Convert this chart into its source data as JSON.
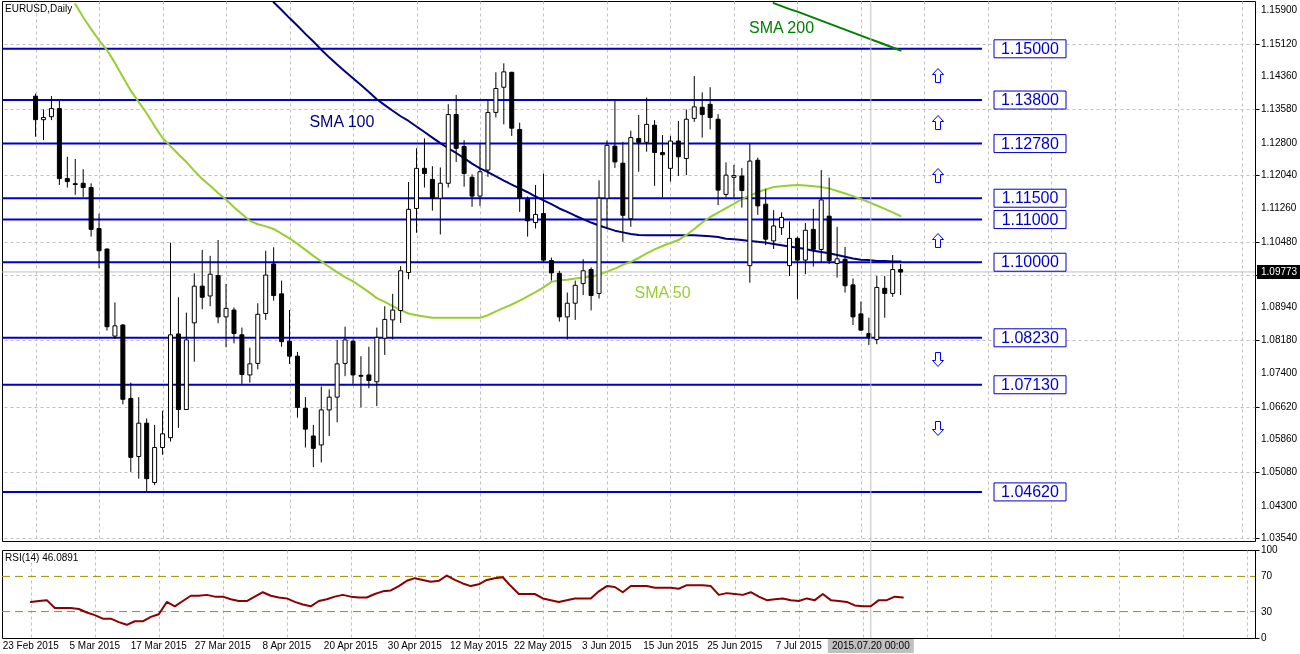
{
  "chart_data": [
    {
      "type": "candlestick",
      "title": "EURUSD,Daily",
      "categories": [
        null,
        null,
        null,
        null,
        null,
        null,
        null,
        null,
        null,
        null,
        null,
        null,
        null,
        null,
        null,
        null,
        null,
        null,
        null,
        null,
        null,
        null,
        null,
        null,
        null,
        null,
        null,
        null,
        null,
        null,
        null,
        null,
        null,
        null,
        null,
        null,
        null,
        null,
        null,
        null,
        null,
        null,
        null,
        null,
        null,
        null,
        null,
        null,
        null,
        null,
        null,
        null,
        null,
        null,
        null,
        null,
        null,
        null,
        null,
        null,
        null,
        null,
        null,
        null,
        null,
        null,
        null,
        null,
        null,
        null,
        null,
        null,
        null,
        null,
        null,
        null,
        null,
        null,
        null,
        null,
        null,
        null,
        null,
        null,
        null,
        null,
        null,
        null,
        null,
        null,
        null,
        null,
        null,
        null,
        null,
        null,
        null,
        null,
        null,
        null,
        null,
        null,
        null,
        null,
        null,
        null,
        null,
        null,
        null,
        null
      ],
      "ohlc": [
        [
          1.1389,
          1.1395,
          1.1294,
          1.1334
        ],
        [
          1.1334,
          1.1358,
          1.1286,
          1.1339
        ],
        [
          1.1341,
          1.1389,
          1.1333,
          1.136
        ],
        [
          1.136,
          1.138,
          1.1181,
          1.1196
        ],
        [
          1.1196,
          1.1247,
          1.1175,
          1.1189
        ],
        [
          1.1184,
          1.1242,
          1.1158,
          1.1182
        ],
        [
          1.1185,
          1.1218,
          1.1153,
          1.1175
        ],
        [
          1.1175,
          1.1185,
          1.106,
          1.1077
        ],
        [
          1.1079,
          1.1114,
          1.0986,
          1.1027
        ],
        [
          1.1031,
          1.1032,
          1.084,
          1.0849
        ],
        [
          1.0827,
          1.0906,
          1.082,
          1.0851
        ],
        [
          1.0853,
          1.0855,
          1.0667,
          1.0679
        ],
        [
          1.0681,
          1.0718,
          1.0509,
          1.0543
        ],
        [
          1.0545,
          1.0684,
          1.0493,
          1.0623
        ],
        [
          1.0623,
          1.0634,
          1.0462,
          1.0493
        ],
        [
          1.0484,
          1.0619,
          1.0478,
          1.0566
        ],
        [
          1.0566,
          1.0652,
          1.0549,
          1.0598
        ],
        [
          1.0589,
          1.1046,
          1.058,
          1.083
        ],
        [
          1.0832,
          1.0918,
          1.0612,
          1.0655
        ],
        [
          1.0655,
          1.0882,
          1.0654,
          1.0818
        ],
        [
          1.0858,
          1.0974,
          1.0767,
          1.0944
        ],
        [
          1.0944,
          1.1029,
          1.089,
          1.0918
        ],
        [
          1.0921,
          1.1015,
          1.0897,
          1.0972
        ],
        [
          1.0969,
          1.1052,
          1.0857,
          1.0872
        ],
        [
          1.0872,
          1.0949,
          1.0801,
          1.0892
        ],
        [
          1.0888,
          1.0894,
          1.081,
          1.0833
        ],
        [
          1.083,
          1.0847,
          1.0715,
          1.0737
        ],
        [
          1.0736,
          1.08,
          1.0718,
          1.0762
        ],
        [
          1.0763,
          1.0904,
          1.0749,
          1.0878
        ],
        [
          1.088,
          1.1027,
          1.0865,
          1.097
        ],
        [
          1.0996,
          1.1035,
          1.091,
          1.0922
        ],
        [
          1.0926,
          1.0957,
          1.0802,
          1.0814
        ],
        [
          1.0815,
          1.0888,
          1.0762,
          1.078
        ],
        [
          1.078,
          1.079,
          1.0636,
          1.066
        ],
        [
          1.0658,
          1.0684,
          1.0566,
          1.0609
        ],
        [
          1.0593,
          1.0619,
          1.052,
          1.0564
        ],
        [
          1.0572,
          1.0709,
          1.0531,
          1.0654
        ],
        [
          1.0654,
          1.0702,
          1.0593,
          1.0684
        ],
        [
          1.0684,
          1.0818,
          1.0625,
          1.0762
        ],
        [
          1.0763,
          1.0849,
          1.0733,
          1.0818
        ],
        [
          1.0815,
          1.0819,
          1.0715,
          1.0736
        ],
        [
          1.0735,
          1.078,
          1.066,
          1.0733
        ],
        [
          1.0736,
          1.0802,
          1.0705,
          1.0723
        ],
        [
          1.072,
          1.0847,
          1.0663,
          1.0824
        ],
        [
          1.0822,
          1.0897,
          1.0783,
          1.0866
        ],
        [
          1.0865,
          1.0926,
          1.0819,
          1.0888
        ],
        [
          1.0887,
          1.0991,
          1.0858,
          1.098
        ],
        [
          1.0976,
          1.1188,
          1.096,
          1.1124
        ],
        [
          1.1126,
          1.1267,
          1.1069,
          1.122
        ],
        [
          1.122,
          1.129,
          1.1175,
          1.1208
        ],
        [
          1.1194,
          1.1225,
          1.1121,
          1.115
        ],
        [
          1.115,
          1.1222,
          1.1065,
          1.1185
        ],
        [
          1.1185,
          1.137,
          1.1175,
          1.1346
        ],
        [
          1.1346,
          1.1392,
          1.1235,
          1.1267
        ],
        [
          1.1271,
          1.1286,
          1.1177,
          1.1208
        ],
        [
          1.1199,
          1.1206,
          1.113,
          1.1155
        ],
        [
          1.1155,
          1.1278,
          1.1132,
          1.1212
        ],
        [
          1.1216,
          1.138,
          1.12,
          1.1351
        ],
        [
          1.1351,
          1.1445,
          1.1339,
          1.1407
        ],
        [
          1.141,
          1.1466,
          1.1323,
          1.1446
        ],
        [
          1.1445,
          1.1446,
          1.1296,
          1.1314
        ],
        [
          1.1311,
          1.1327,
          1.1118,
          1.115
        ],
        [
          1.1147,
          1.1154,
          1.106,
          1.1097
        ],
        [
          1.1093,
          1.1181,
          1.1079,
          1.1112
        ],
        [
          1.1114,
          1.1208,
          1.1001,
          1.1005
        ],
        [
          1.1004,
          1.1011,
          1.0957,
          1.0975
        ],
        [
          1.0974,
          1.098,
          1.0861,
          1.0872
        ],
        [
          1.0872,
          1.0929,
          1.0819,
          1.0904
        ],
        [
          1.0904,
          1.0957,
          1.0865,
          1.0946
        ],
        [
          1.095,
          1.1007,
          1.0923,
          1.098
        ],
        [
          1.0983,
          1.0988,
          1.0887,
          1.0922
        ],
        [
          1.0927,
          1.1192,
          1.0915,
          1.115
        ],
        [
          1.115,
          1.1285,
          1.1079,
          1.1274
        ],
        [
          1.1272,
          1.138,
          1.1221,
          1.1235
        ],
        [
          1.1232,
          1.1282,
          1.1048,
          1.111
        ],
        [
          1.1102,
          1.1308,
          1.1083,
          1.1292
        ],
        [
          1.129,
          1.1345,
          1.1212,
          1.1281
        ],
        [
          1.1281,
          1.1386,
          1.1259,
          1.1323
        ],
        [
          1.1321,
          1.1333,
          1.1179,
          1.1257
        ],
        [
          1.1257,
          1.1298,
          1.1152,
          1.1252
        ],
        [
          1.122,
          1.1296,
          1.1189,
          1.1284
        ],
        [
          1.1284,
          1.1331,
          1.1202,
          1.1247
        ],
        [
          1.1243,
          1.1358,
          1.1204,
          1.1335
        ],
        [
          1.1337,
          1.1436,
          1.1329,
          1.1364
        ],
        [
          1.1363,
          1.1398,
          1.1292,
          1.1346
        ],
        [
          1.137,
          1.141,
          1.1311,
          1.1339
        ],
        [
          1.1335,
          1.1347,
          1.1134,
          1.1169
        ],
        [
          1.1159,
          1.1234,
          1.1152,
          1.1204
        ],
        [
          1.1199,
          1.1228,
          1.1152,
          1.1203
        ],
        [
          1.1202,
          1.1221,
          1.1128,
          1.1168
        ],
        [
          1.0992,
          1.1278,
          1.0952,
          1.1237
        ],
        [
          1.1239,
          1.1245,
          1.1111,
          1.1132
        ],
        [
          1.1136,
          1.1171,
          1.104,
          1.1054
        ],
        [
          1.105,
          1.1122,
          1.1031,
          1.1085
        ],
        [
          1.1081,
          1.1117,
          1.1064,
          1.1105
        ],
        [
          1.0992,
          1.1096,
          1.0968,
          1.1056
        ],
        [
          1.1056,
          1.106,
          1.0913,
          1.1005
        ],
        [
          1.1005,
          1.1092,
          1.0972,
          1.1075
        ],
        [
          1.1077,
          1.1125,
          1.099,
          1.103
        ],
        [
          1.103,
          1.1216,
          1.1001,
          1.1146
        ],
        [
          1.1108,
          1.1198,
          1.0996,
          1.1004
        ],
        [
          1.0997,
          1.1083,
          1.0964,
          1.1008
        ],
        [
          1.1007,
          1.1036,
          1.0929,
          1.0945
        ],
        [
          1.0947,
          1.0962,
          1.0853,
          1.0872
        ],
        [
          1.0879,
          1.0908,
          1.0839,
          1.0841
        ],
        [
          1.0833,
          1.087,
          1.0806,
          1.0823
        ],
        [
          1.0819,
          1.0968,
          1.0808,
          1.0941
        ],
        [
          1.0939,
          1.0968,
          1.087,
          1.0927
        ],
        [
          1.0927,
          1.1017,
          1.0919,
          1.0983
        ],
        [
          1.0983,
          1.0996,
          1.0923,
          1.0977
        ]
      ],
      "colors": [
        "#000000",
        "#ffffff",
        "#ffffff",
        "#000000",
        "#000000",
        "#000000",
        "#000000",
        "#000000",
        "#000000",
        "#000000",
        "#ffffff",
        "#000000",
        "#000000",
        "#ffffff",
        "#000000",
        "#ffffff",
        "#ffffff",
        "#ffffff",
        "#000000",
        "#ffffff",
        "#ffffff",
        "#000000",
        "#ffffff",
        "#000000",
        "#ffffff",
        "#000000",
        "#000000",
        "#ffffff",
        "#ffffff",
        "#ffffff",
        "#000000",
        "#000000",
        "#000000",
        "#000000",
        "#000000",
        "#000000",
        "#ffffff",
        "#ffffff",
        "#ffffff",
        "#ffffff",
        "#000000",
        "#000000",
        "#000000",
        "#ffffff",
        "#ffffff",
        "#ffffff",
        "#ffffff",
        "#ffffff",
        "#ffffff",
        "#000000",
        "#000000",
        "#ffffff",
        "#ffffff",
        "#000000",
        "#000000",
        "#000000",
        "#ffffff",
        "#ffffff",
        "#ffffff",
        "#ffffff",
        "#000000",
        "#000000",
        "#000000",
        "#ffffff",
        "#000000",
        "#000000",
        "#000000",
        "#ffffff",
        "#ffffff",
        "#ffffff",
        "#000000",
        "#ffffff",
        "#ffffff",
        "#000000",
        "#000000",
        "#ffffff",
        "#000000",
        "#ffffff",
        "#000000",
        "#000000",
        "#ffffff",
        "#000000",
        "#ffffff",
        "#ffffff",
        "#000000",
        "#000000",
        "#000000",
        "#ffffff",
        "#ffffff",
        "#000000",
        "#ffffff",
        "#000000",
        "#000000",
        "#ffffff",
        "#ffffff",
        "#ffffff",
        "#000000",
        "#ffffff",
        "#000000",
        "#ffffff",
        "#000000",
        "#ffffff",
        "#000000",
        "#000000",
        "#000000",
        "#000000",
        "#ffffff",
        "#000000",
        "#ffffff",
        "#000000"
      ],
      "series": [
        {
          "type": "line",
          "name": "SMA 200",
          "color": "#008000",
          "values": [
            null,
            null,
            null,
            null,
            null,
            null,
            null,
            null,
            null,
            null,
            null,
            null,
            null,
            null,
            null,
            null,
            null,
            null,
            null,
            null,
            null,
            null,
            null,
            null,
            null,
            null,
            null,
            null,
            null,
            null,
            null,
            null,
            null,
            null,
            null,
            null,
            null,
            null,
            null,
            null,
            null,
            null,
            null,
            null,
            null,
            null,
            null,
            null,
            null,
            null,
            null,
            null,
            null,
            null,
            null,
            null,
            null,
            null,
            null,
            null,
            null,
            null,
            null,
            null,
            null,
            null,
            null,
            null,
            null,
            null,
            null,
            null,
            null,
            null,
            null,
            null,
            null,
            null,
            null,
            null,
            null,
            null,
            null,
            null,
            null,
            null,
            null,
            null,
            null,
            null,
            null,
            null,
            null,
            1.1607,
            1.16,
            1.1593,
            1.1587,
            1.158,
            1.1573,
            1.1566,
            1.1559,
            1.1552,
            1.1545,
            1.1538,
            1.1531,
            1.1524,
            1.1517,
            1.151,
            1.1503,
            1.1496
          ]
        },
        {
          "type": "line",
          "name": "SMA 100",
          "color": "#000080",
          "values": [
            null,
            null,
            null,
            null,
            null,
            null,
            null,
            null,
            null,
            null,
            null,
            null,
            null,
            null,
            null,
            null,
            null,
            null,
            null,
            null,
            null,
            null,
            null,
            null,
            null,
            null,
            null,
            null,
            null,
            null,
            1.1609,
            1.1591,
            1.1572,
            1.1554,
            1.1535,
            1.1517,
            1.1498,
            1.148,
            1.1463,
            1.1447,
            1.1431,
            1.1415,
            1.1399,
            1.1382,
            1.1368,
            1.1355,
            1.1342,
            1.1331,
            1.1318,
            1.1305,
            1.1292,
            1.1279,
            1.1267,
            1.1256,
            1.1244,
            1.1231,
            1.122,
            1.1211,
            1.1201,
            1.1191,
            1.1182,
            1.1173,
            1.1164,
            1.1154,
            1.1145,
            1.1136,
            1.1126,
            1.1118,
            1.1109,
            1.1101,
            1.1093,
            1.1086,
            1.108,
            1.1074,
            1.107,
            1.1066,
            1.1064,
            1.1063,
            1.1063,
            1.1063,
            1.1063,
            1.1063,
            1.1063,
            1.1063,
            1.1062,
            1.1061,
            1.1059,
            1.1055,
            1.1054,
            1.1052,
            1.105,
            1.1048,
            1.1046,
            1.1043,
            1.104,
            1.1037,
            1.1034,
            1.1031,
            1.1027,
            1.1024,
            1.1021,
            1.1017,
            1.1013,
            1.1009,
            1.1006,
            1.1005,
            1.1003,
            1.1003,
            1.1002,
            1.1002
          ]
        },
        {
          "type": "line",
          "name": "SMA 50",
          "color": "#9acd32",
          "values": [
            null,
            null,
            null,
            null,
            null,
            1.1605,
            1.1574,
            1.1546,
            1.152,
            1.1497,
            1.1467,
            1.1434,
            1.1402,
            1.1375,
            1.1349,
            1.1319,
            1.1291,
            1.1272,
            1.1253,
            1.1235,
            1.1214,
            1.1195,
            1.1179,
            1.1162,
            1.1147,
            1.1129,
            1.1113,
            1.1097,
            1.1089,
            1.1084,
            1.1078,
            1.1067,
            1.1056,
            1.1043,
            1.1029,
            1.1015,
            1.1002,
            1.0989,
            1.0977,
            1.0965,
            1.0955,
            1.0943,
            1.093,
            1.0916,
            1.0907,
            1.0897,
            1.0888,
            1.088,
            1.0876,
            1.0873,
            1.087,
            1.087,
            1.087,
            1.087,
            1.087,
            1.087,
            1.087,
            1.0876,
            1.0885,
            1.0893,
            1.0901,
            1.091,
            1.092,
            1.093,
            1.0941,
            1.0954,
            1.0958,
            1.0959,
            1.0962,
            1.0964,
            1.0966,
            1.0971,
            1.0978,
            1.0985,
            1.0994,
            1.1001,
            1.101,
            1.1021,
            1.103,
            1.1038,
            1.1045,
            1.1052,
            1.1064,
            1.1078,
            1.1093,
            1.1106,
            1.1116,
            1.1127,
            1.1137,
            1.1148,
            1.1156,
            1.1164,
            1.1171,
            1.1176,
            1.1178,
            1.118,
            1.1181,
            1.118,
            1.1178,
            1.1176,
            1.1173,
            1.1167,
            1.1161,
            1.1155,
            1.1148,
            1.1141,
            1.1133,
            1.1125,
            1.1117,
            1.1108
          ]
        }
      ],
      "ylim": [
        1.0347,
        1.1612
      ],
      "yticks": [
        {
          "value": 1.159,
          "label": "1.15900"
        },
        {
          "value": 1.1512,
          "label": "1.15120"
        },
        {
          "value": 1.1436,
          "label": "1.14360"
        },
        {
          "value": 1.1358,
          "label": "1.13580"
        },
        {
          "value": 1.128,
          "label": "1.12800"
        },
        {
          "value": 1.1204,
          "label": "1.12040"
        },
        {
          "value": 1.1126,
          "label": "1.11260"
        },
        {
          "value": 1.1048,
          "label": "1.10480"
        },
        {
          "value": 1.09773,
          "label": "1.09773"
        },
        {
          "value": 1.097,
          "label": null
        },
        {
          "value": 1.0894,
          "label": "1.08940"
        },
        {
          "value": 1.0818,
          "label": "1.08180"
        },
        {
          "value": 1.074,
          "label": "1.07400"
        },
        {
          "value": 1.0662,
          "label": "1.06620"
        },
        {
          "value": 1.0586,
          "label": "1.05860"
        },
        {
          "value": 1.0508,
          "label": "1.05080"
        },
        {
          "value": 1.043,
          "label": "1.04300"
        },
        {
          "value": 1.0354,
          "label": "1.03540"
        }
      ],
      "grid": true,
      "tick_labels": "y",
      "ref_lines": [
        {
          "axis": "y",
          "value": 1.15,
          "label": "1.15000",
          "color": "#0000cc"
        },
        {
          "axis": "y",
          "value": 1.138,
          "label": "1.13800",
          "color": "#0000cc"
        },
        {
          "axis": "y",
          "value": 1.1278,
          "label": "1.12780",
          "color": "#0000cc"
        },
        {
          "axis": "y",
          "value": 1.115,
          "label": "1.11500",
          "color": "#0000cc"
        },
        {
          "axis": "y",
          "value": 1.11,
          "label": "1.11000",
          "color": "#0000cc"
        },
        {
          "axis": "y",
          "value": 1.1,
          "label": "1.10000",
          "color": "#0000cc"
        },
        {
          "axis": "y",
          "value": 1.0823,
          "label": "1.08230",
          "color": "#0000cc"
        },
        {
          "axis": "y",
          "value": 1.0713,
          "label": "1.07130",
          "color": "#0000cc"
        },
        {
          "axis": "y",
          "value": 1.0462,
          "label": "1.04620",
          "color": "#0000cc"
        },
        {
          "axis": "y",
          "value": 1.09773,
          "color": "#c0c0c0"
        }
      ]
    },
    {
      "type": "line",
      "title": "RSI(14) 46.0891",
      "categories": [
        "23 Feb 2015",
        null,
        null,
        null,
        null,
        null,
        null,
        null,
        "5 Mar 2015",
        null,
        null,
        null,
        null,
        null,
        null,
        null,
        "17 Mar 2015",
        null,
        null,
        null,
        null,
        null,
        null,
        null,
        "27 Mar 2015",
        null,
        null,
        null,
        null,
        null,
        null,
        null,
        "8 Apr 2015",
        null,
        null,
        null,
        null,
        null,
        null,
        null,
        "20 Apr 2015",
        null,
        null,
        null,
        null,
        null,
        null,
        null,
        "30 Apr 2015",
        null,
        null,
        null,
        null,
        null,
        null,
        null,
        "12 May 2015",
        null,
        null,
        null,
        null,
        null,
        null,
        null,
        "22 May 2015",
        null,
        null,
        null,
        null,
        null,
        null,
        null,
        "3 Jun 2015",
        null,
        null,
        null,
        null,
        null,
        null,
        null,
        "15 Jun 2015",
        null,
        null,
        null,
        null,
        null,
        null,
        null,
        "25 Jun 2015",
        null,
        null,
        null,
        null,
        null,
        null,
        null,
        "7 Jul 2015",
        null,
        null,
        null,
        null,
        null,
        null,
        null,
        null,
        "2015.07.20 00:00",
        null,
        null,
        null,
        null
      ],
      "values": [
        41,
        42,
        43,
        34,
        34,
        34,
        33,
        29,
        26,
        22,
        22,
        18,
        15,
        19,
        19,
        24,
        27,
        41,
        36,
        42,
        48,
        48,
        49,
        47,
        47,
        44,
        42,
        42,
        47,
        52,
        48,
        46,
        45,
        41,
        38,
        36,
        42,
        44,
        47,
        49,
        47,
        46,
        46,
        50,
        53,
        54,
        59,
        65,
        68,
        66,
        64,
        65,
        71,
        66,
        62,
        59,
        61,
        66,
        68,
        69,
        59,
        50,
        50,
        50,
        45,
        43,
        41,
        43,
        45,
        45,
        45,
        53,
        59,
        58,
        52,
        59,
        59,
        59,
        57,
        57,
        57,
        56,
        60,
        60,
        60,
        59,
        49,
        51,
        50,
        49,
        52,
        47,
        43,
        44,
        45,
        43,
        42,
        45,
        43,
        50,
        43,
        42,
        41,
        37,
        36,
        36,
        43,
        43,
        47,
        46
      ],
      "color": "#8b0000",
      "ylim": [
        0,
        100
      ],
      "yticks": [
        0,
        30,
        70,
        100
      ],
      "grid": "x",
      "ref_lines": [
        {
          "axis": "y",
          "value": 70,
          "color": "#a08c00",
          "line_style": "dashed"
        },
        {
          "axis": "y",
          "value": 30,
          "color": "#a08c00",
          "line_style": "dashed"
        },
        {
          "axis": "x",
          "value": "2015.07.20 00:00",
          "color": "#c0c0c0"
        }
      ]
    }
  ]
}
